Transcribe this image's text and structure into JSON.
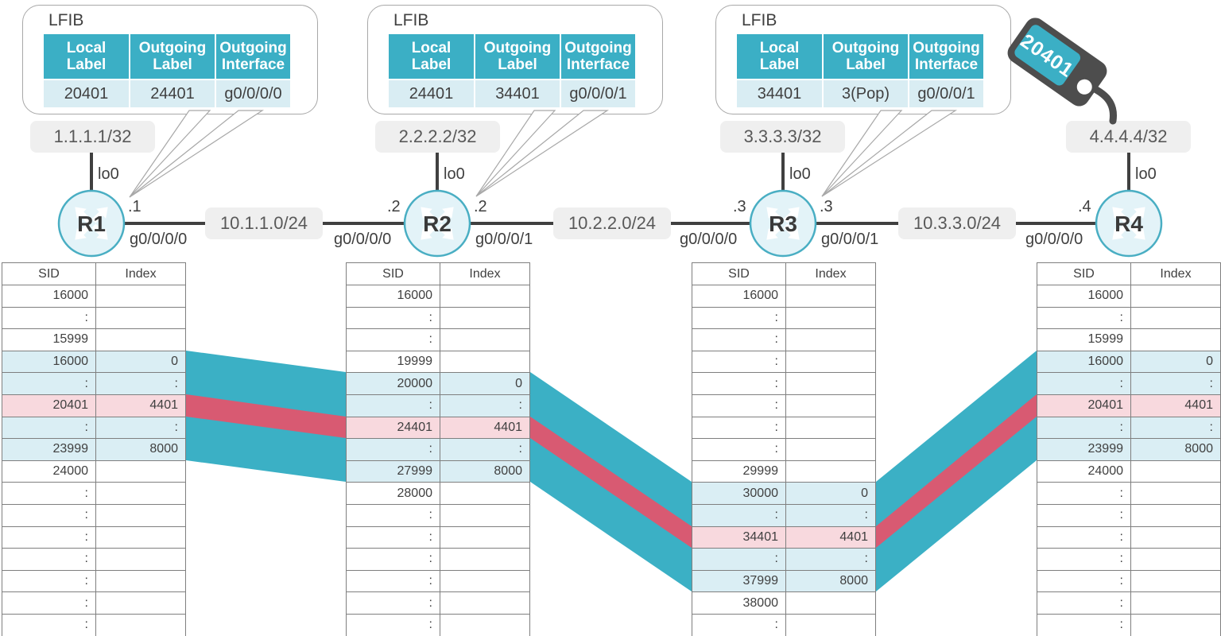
{
  "lfib": {
    "title": "LFIB",
    "headers": [
      "Local Label",
      "Outgoing Label",
      "Outgoing Interface"
    ],
    "tables": [
      {
        "router": "R1",
        "row": [
          "20401",
          "24401",
          "g0/0/0/0"
        ]
      },
      {
        "router": "R2",
        "row": [
          "24401",
          "34401",
          "g0/0/0/1"
        ]
      },
      {
        "router": "R3",
        "row": [
          "34401",
          "3(Pop)",
          "g0/0/0/1"
        ]
      }
    ]
  },
  "tag": {
    "label": "20401"
  },
  "topology": {
    "routers": [
      {
        "name": "R1",
        "loopback": "1.1.1.1/32",
        "loopback_if": "lo0"
      },
      {
        "name": "R2",
        "loopback": "2.2.2.2/32",
        "loopback_if": "lo0"
      },
      {
        "name": "R3",
        "loopback": "3.3.3.3/32",
        "loopback_if": "lo0"
      },
      {
        "name": "R4",
        "loopback": "4.4.4.4/32",
        "loopback_if": "lo0"
      }
    ],
    "links": [
      {
        "subnet": "10.1.1.0/24",
        "left": {
          "addr": ".1",
          "iface": "g0/0/0/0"
        },
        "right": {
          "addr": ".2",
          "iface": "g0/0/0/0"
        }
      },
      {
        "subnet": "10.2.2.0/24",
        "left": {
          "addr": ".2",
          "iface": "g0/0/0/1"
        },
        "right": {
          "addr": ".3",
          "iface": "g0/0/0/0"
        }
      },
      {
        "subnet": "10.3.3.0/24",
        "left": {
          "addr": ".3",
          "iface": "g0/0/0/1"
        },
        "right": {
          "addr": ".4",
          "iface": "g0/0/0/0"
        }
      }
    ]
  },
  "sid_tables": {
    "headers": [
      "SID",
      "Index"
    ],
    "tables": [
      {
        "router": "R1",
        "rows": [
          [
            "16000",
            "",
            "w"
          ],
          [
            ":",
            "",
            "w"
          ],
          [
            "15999",
            "",
            "w"
          ],
          [
            "16000",
            "0",
            "b"
          ],
          [
            ":",
            ":",
            "b"
          ],
          [
            "20401",
            "4401",
            "p"
          ],
          [
            ":",
            ":",
            "b"
          ],
          [
            "23999",
            "8000",
            "b"
          ],
          [
            "24000",
            "",
            "w"
          ],
          [
            ":",
            "",
            "w"
          ],
          [
            ":",
            "",
            "w"
          ],
          [
            ":",
            "",
            "w"
          ],
          [
            ":",
            "",
            "w"
          ],
          [
            ":",
            "",
            "w"
          ],
          [
            ":",
            "",
            "w"
          ],
          [
            ":",
            "",
            "w"
          ]
        ]
      },
      {
        "router": "R2",
        "rows": [
          [
            "16000",
            "",
            "w"
          ],
          [
            ":",
            "",
            "w"
          ],
          [
            ":",
            "",
            "w"
          ],
          [
            "19999",
            "",
            "w"
          ],
          [
            "20000",
            "0",
            "b"
          ],
          [
            ":",
            ":",
            "b"
          ],
          [
            "24401",
            "4401",
            "p"
          ],
          [
            ":",
            ":",
            "b"
          ],
          [
            "27999",
            "8000",
            "b"
          ],
          [
            "28000",
            "",
            "w"
          ],
          [
            ":",
            "",
            "w"
          ],
          [
            ":",
            "",
            "w"
          ],
          [
            ":",
            "",
            "w"
          ],
          [
            ":",
            "",
            "w"
          ],
          [
            ":",
            "",
            "w"
          ],
          [
            ":",
            "",
            "w"
          ]
        ]
      },
      {
        "router": "R3",
        "rows": [
          [
            "16000",
            "",
            "w"
          ],
          [
            ":",
            "",
            "w"
          ],
          [
            ":",
            "",
            "w"
          ],
          [
            ":",
            "",
            "w"
          ],
          [
            ":",
            "",
            "w"
          ],
          [
            ":",
            "",
            "w"
          ],
          [
            ":",
            "",
            "w"
          ],
          [
            ":",
            "",
            "w"
          ],
          [
            "29999",
            "",
            "w"
          ],
          [
            "30000",
            "0",
            "b"
          ],
          [
            ":",
            ":",
            "b"
          ],
          [
            "34401",
            "4401",
            "p"
          ],
          [
            ":",
            ":",
            "b"
          ],
          [
            "37999",
            "8000",
            "b"
          ],
          [
            "38000",
            "",
            "w"
          ],
          [
            ":",
            "",
            "w"
          ]
        ]
      },
      {
        "router": "R4",
        "rows": [
          [
            "16000",
            "",
            "w"
          ],
          [
            ":",
            "",
            "w"
          ],
          [
            "15999",
            "",
            "w"
          ],
          [
            "16000",
            "0",
            "b"
          ],
          [
            ":",
            ":",
            "b"
          ],
          [
            "20401",
            "4401",
            "p"
          ],
          [
            ":",
            ":",
            "b"
          ],
          [
            "23999",
            "8000",
            "b"
          ],
          [
            "24000",
            "",
            "w"
          ],
          [
            ":",
            "",
            "w"
          ],
          [
            ":",
            "",
            "w"
          ],
          [
            ":",
            "",
            "w"
          ],
          [
            ":",
            "",
            "w"
          ],
          [
            ":",
            "",
            "w"
          ],
          [
            ":",
            "",
            "w"
          ],
          [
            ":",
            "",
            "w"
          ]
        ]
      }
    ]
  },
  "colors": {
    "teal": "#3BAFC5",
    "band_red": "#D85A72",
    "row_blue": "#DAEEF4",
    "row_pink": "#F8D9DE",
    "box_gray": "#EFEFEF",
    "text_dark": "#404040"
  }
}
